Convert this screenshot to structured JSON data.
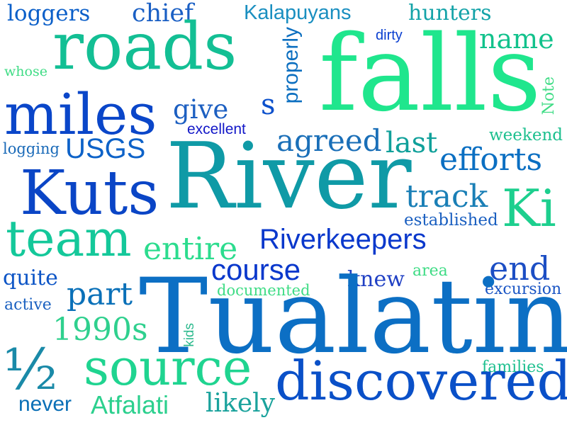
{
  "words": [
    {
      "text": "loggers",
      "color": "#0b5fc9"
    },
    {
      "text": "chief",
      "color": "#1a5fc4"
    },
    {
      "text": "Kalapuyans",
      "color": "#1a8fc0"
    },
    {
      "text": "hunters",
      "color": "#14a3a8"
    },
    {
      "text": "roads",
      "color": "#13bf94"
    },
    {
      "text": "properly",
      "color": "#0c6fc0"
    },
    {
      "text": "dirty",
      "color": "#0a3fd0"
    },
    {
      "text": "falls",
      "color": "#1fe68d"
    },
    {
      "text": "name",
      "color": "#12c28c"
    },
    {
      "text": "whose",
      "color": "#3fdc85"
    },
    {
      "text": "Note",
      "color": "#3fdc85"
    },
    {
      "text": "miles",
      "color": "#0a46c9"
    },
    {
      "text": "give",
      "color": "#1c5fc1"
    },
    {
      "text": "s",
      "color": "#0b50cc"
    },
    {
      "text": "excellent",
      "color": "#1318c8"
    },
    {
      "text": "weekend",
      "color": "#1ec08f"
    },
    {
      "text": "logging",
      "color": "#1a6ab8"
    },
    {
      "text": "USGS",
      "color": "#0d62c8"
    },
    {
      "text": "agreed",
      "color": "#1a6fb8"
    },
    {
      "text": "last",
      "color": "#10a09a"
    },
    {
      "text": "efforts",
      "color": "#0b6fc2"
    },
    {
      "text": "River",
      "color": "#0f9aa6"
    },
    {
      "text": "Kuts",
      "color": "#0a45c6"
    },
    {
      "text": "track",
      "color": "#1a7fb6"
    },
    {
      "text": "Ki",
      "color": "#1dcf8e"
    },
    {
      "text": "established",
      "color": "#1a5fc0"
    },
    {
      "text": "team",
      "color": "#14c89a"
    },
    {
      "text": "entire",
      "color": "#2cdc8e"
    },
    {
      "text": "Riverkeepers",
      "color": "#0a38cc"
    },
    {
      "text": "course",
      "color": "#0a38cc"
    },
    {
      "text": "end",
      "color": "#1c4ec4"
    },
    {
      "text": "area",
      "color": "#3fdc85"
    },
    {
      "text": "quite",
      "color": "#0d55c6"
    },
    {
      "text": "knew",
      "color": "#2040c4"
    },
    {
      "text": "part",
      "color": "#0a70b8"
    },
    {
      "text": "documented",
      "color": "#3fdc85"
    },
    {
      "text": "excursion",
      "color": "#1a55c4"
    },
    {
      "text": "active",
      "color": "#1a60c0"
    },
    {
      "text": "Tualatin",
      "color": "#0c6fc4"
    },
    {
      "text": "1990s",
      "color": "#2fd08e"
    },
    {
      "text": "kids",
      "color": "#2dba8e"
    },
    {
      "text": "½",
      "color": "#1a8aa8"
    },
    {
      "text": "source",
      "color": "#1fd490"
    },
    {
      "text": "families",
      "color": "#1ec08f"
    },
    {
      "text": "discovered",
      "color": "#0a50c8"
    },
    {
      "text": "never",
      "color": "#0a6fb6"
    },
    {
      "text": "Atfalati",
      "color": "#2cd08e"
    },
    {
      "text": "likely",
      "color": "#1aa29c"
    }
  ]
}
